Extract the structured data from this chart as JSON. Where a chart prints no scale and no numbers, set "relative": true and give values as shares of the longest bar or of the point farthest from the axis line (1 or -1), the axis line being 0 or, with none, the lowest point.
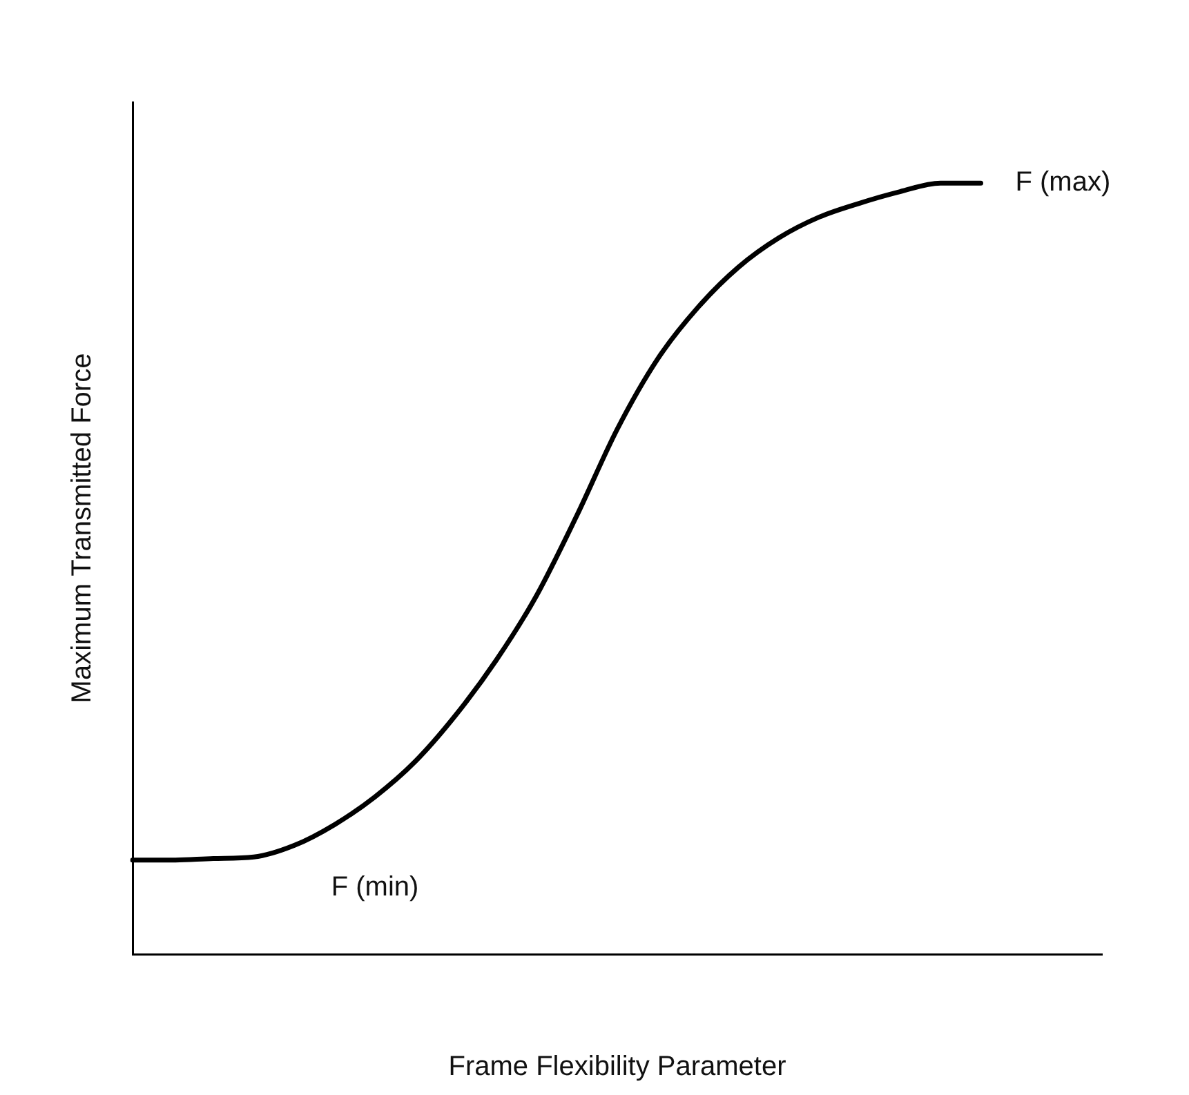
{
  "chart_data": {
    "type": "line",
    "relative": true,
    "xlabel": "Frame Flexibility Parameter",
    "ylabel": "Maximum Transmitted Force",
    "categories": [
      null,
      null,
      null,
      null,
      null,
      null,
      null,
      null,
      null,
      null,
      null,
      null,
      null,
      null,
      null,
      null,
      null,
      null,
      null,
      null,
      null,
      null,
      null,
      null,
      null
    ],
    "series": [
      {
        "color": "#000000",
        "values": [
          0.122,
          0.122,
          0.124,
          0.126,
          0.141,
          0.168,
          0.204,
          0.25,
          0.31,
          0.381,
          0.465,
          0.569,
          0.681,
          0.772,
          0.839,
          0.891,
          0.929,
          0.956,
          0.974,
          0.989,
          1,
          1,
          null,
          null,
          null
        ]
      }
    ],
    "annotations": [
      "F (min)",
      "F (max)"
    ],
    "grid": false,
    "legend": false,
    "marker": "none",
    "line_style": "solid"
  }
}
